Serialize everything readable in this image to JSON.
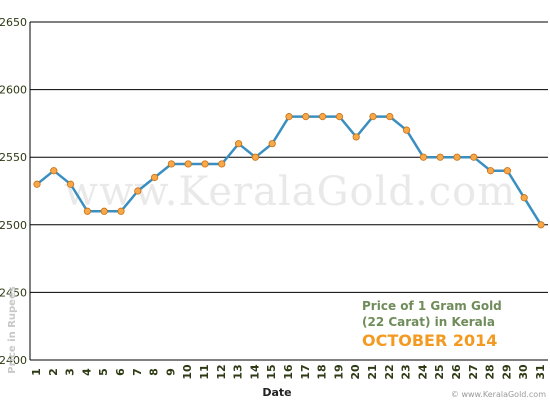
{
  "chart_data": {
    "type": "line",
    "title": "Price of 1 Gram Gold",
    "subtitle": "(22 Carat) in Kerala",
    "period": "OCTOBER 2014",
    "xlabel": "Date",
    "ylabel": "Price in Rupees",
    "watermark": "www.KeralaGold.com",
    "source": "© www.KeralaGold.com",
    "ylim": [
      2400,
      2650
    ],
    "yticks": [
      2400,
      2450,
      2500,
      2550,
      2600,
      2650
    ],
    "grid": true,
    "x": [
      "1",
      "2",
      "3",
      "4",
      "5",
      "6",
      "7",
      "8",
      "9",
      "10",
      "11",
      "12",
      "13",
      "14",
      "15",
      "16",
      "17",
      "18",
      "19",
      "20",
      "21",
      "22",
      "23",
      "24",
      "25",
      "26",
      "27",
      "28",
      "29",
      "30",
      "31"
    ],
    "values": [
      2530,
      2540,
      2530,
      2510,
      2510,
      2510,
      2525,
      2535,
      2545,
      2545,
      2545,
      2545,
      2560,
      2550,
      2560,
      2580,
      2580,
      2580,
      2580,
      2565,
      2580,
      2580,
      2570,
      2550,
      2550,
      2550,
      2550,
      2540,
      2540,
      2520,
      2500
    ],
    "colors": {
      "line": "#3a8fc0",
      "marker_fill": "#f7a94a",
      "marker_stroke": "#c96f12",
      "grid": "#000000",
      "title_green": "#6f8c5a",
      "title_orange": "#f39a22"
    }
  }
}
